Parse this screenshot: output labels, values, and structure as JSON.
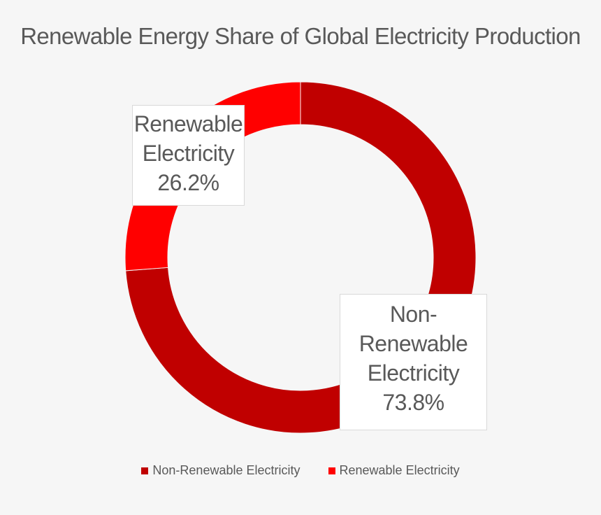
{
  "colors": {
    "non_renewable": "#c00000",
    "renewable": "#ff0000"
  },
  "chart_data": {
    "type": "pie",
    "title": "Renewable Energy Share of Global Electricity Production",
    "slices": [
      {
        "name": "Non-Renewable Electricity",
        "value": 73.8,
        "label": "73.8%",
        "color": "#c00000"
      },
      {
        "name": "Renewable Electricity",
        "value": 26.2,
        "label": "26.2%",
        "color": "#ff0000"
      }
    ],
    "data_labels": {
      "renewable": {
        "line1": "Renewable",
        "line2": "Electricity",
        "line3": "26.2%"
      },
      "non_renewable": {
        "line1": "Non-",
        "line2": "Renewable",
        "line3": "Electricity",
        "line4": "73.8%"
      }
    },
    "legend": [
      "Non-Renewable Electricity",
      "Renewable Electricity"
    ],
    "legend_position": "bottom"
  }
}
